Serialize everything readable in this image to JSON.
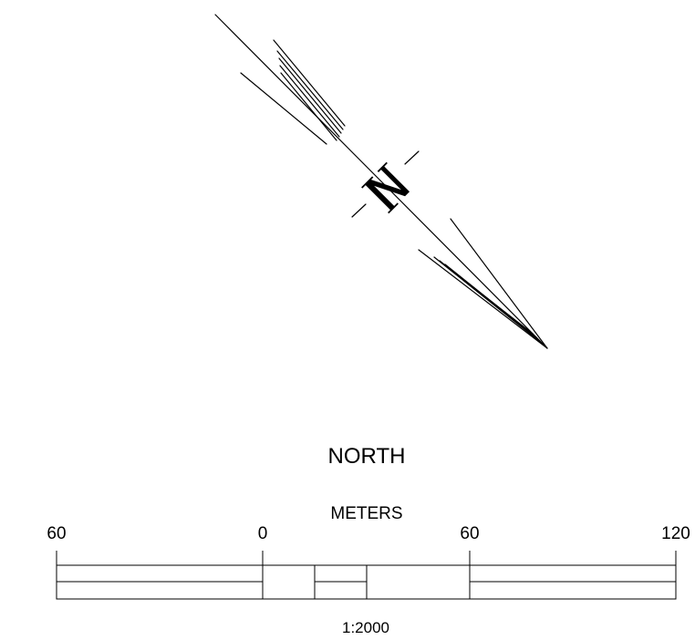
{
  "compass": {
    "letter": "N",
    "label": "NORTH"
  },
  "scale_bar": {
    "units": "METERS",
    "ticks": [
      "60",
      "0",
      "60",
      "120"
    ],
    "ratio": "1:2000"
  }
}
